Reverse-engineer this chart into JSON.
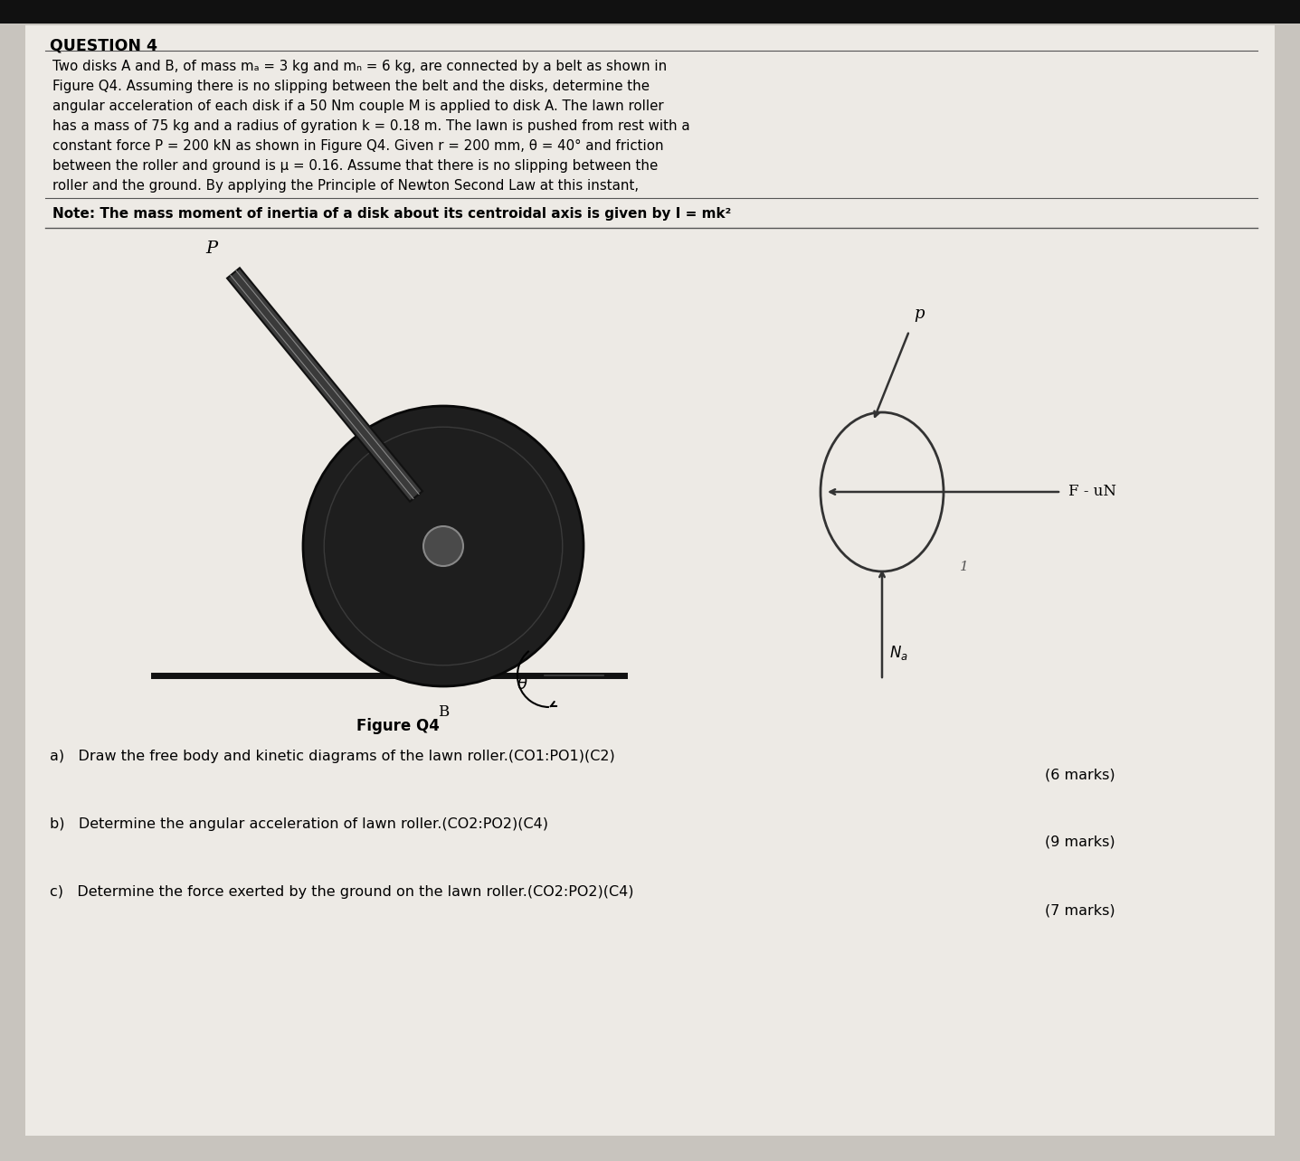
{
  "background_color": "#c8c4be",
  "page_color": "#edeae5",
  "title": "QUESTION 4",
  "para_line1": "Two disks A and B, of mass mₐ = 3 kg and mₙ = 6 kg, are connected by a belt as shown in",
  "para_line2": "Figure Q4. Assuming there is no slipping between the belt and the disks, determine the",
  "para_line3": "angular acceleration of each disk if a 50 Nm couple M is applied to disk A. The lawn roller",
  "para_line4": "has a mass of 75 kg and a radius of gyration k = 0.18 m. The lawn is pushed from rest with a",
  "para_line5": "constant force P = 200 kN as shown in Figure Q4. Given r = 200 mm, θ = 40° and friction",
  "para_line6": "between the roller and ground is μ = 0.16. Assume that there is no slipping between the",
  "para_line7": "roller and the ground. By applying the Principle of Newton Second Law at this instant,",
  "note": "Note: The mass moment of inertia of a disk about its centroidal axis is given by I = mk²",
  "figure_caption": "Figure Q4",
  "question_a": "a)   Draw the free body and kinetic diagrams of the lawn roller.(CO1:PO1)(C2)",
  "marks_a": "(6 marks)",
  "question_b": "b)   Determine the angular acceleration of lawn roller.(CO2:PO2)(C4)",
  "marks_b": "(9 marks)",
  "question_c": "c)   Determine the force exerted by the ground on the lawn roller.(CO2:PO2)(C4)",
  "marks_c": "(7 marks)",
  "roller_color": "#1e1e1e",
  "roller_center_color": "#5a5a5a",
  "handle_outer_color": "#444444",
  "handle_inner_color": "#888888"
}
